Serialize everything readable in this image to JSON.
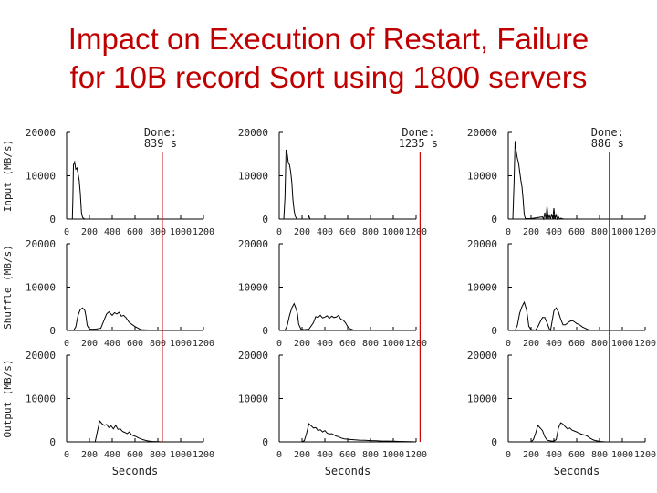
{
  "slide": {
    "title_line1": "Impact on Execution of Restart, Failure",
    "title_line2": "for 10B record Sort using 1800 servers"
  },
  "chart_data": {
    "type": "line",
    "rows": [
      "Input (MB/s)",
      "Shuffle (MB/s)",
      "Output (MB/s)"
    ],
    "xlabel": "Seconds",
    "xlim": [
      0,
      1200
    ],
    "xticks": [
      0,
      200,
      400,
      600,
      800,
      1000,
      1200
    ],
    "ylim": [
      0,
      20000
    ],
    "yticks": [
      0,
      10000,
      20000
    ],
    "colors": {
      "line": "#000000",
      "done_marker": "#cc0000"
    },
    "columns": [
      {
        "done_label": "Done:",
        "done_time": "839 s",
        "done_x": 839,
        "panels": [
          {
            "x": [
              0,
              50,
              55,
              60,
              70,
              80,
              90,
              100,
              110,
              120,
              130,
              140,
              150,
              160,
              180,
              200,
              1200
            ],
            "y": [
              0,
              0,
              5000,
              12500,
              13200,
              11500,
              11800,
              10500,
              9000,
              6000,
              1500,
              400,
              100,
              0,
              0,
              0,
              0
            ]
          },
          {
            "x": [
              0,
              60,
              80,
              100,
              120,
              140,
              160,
              170,
              180,
              200,
              250,
              300,
              330,
              350,
              370,
              400,
              420,
              440,
              460,
              480,
              500,
              520,
              550,
              600,
              650,
              800,
              1200
            ],
            "y": [
              0,
              0,
              800,
              3500,
              4800,
              5200,
              4600,
              3200,
              1200,
              300,
              300,
              500,
              2500,
              3800,
              4300,
              3500,
              4100,
              3800,
              4200,
              3300,
              3500,
              3000,
              1800,
              900,
              200,
              0,
              0
            ]
          },
          {
            "x": [
              0,
              250,
              270,
              290,
              310,
              330,
              350,
              370,
              390,
              410,
              430,
              450,
              470,
              490,
              510,
              530,
              550,
              570,
              590,
              610,
              630,
              650,
              670,
              700,
              720,
              750,
              800,
              830,
              840,
              1200
            ],
            "y": [
              0,
              0,
              2500,
              4800,
              4200,
              3800,
              4000,
              3300,
              3700,
              3000,
              3800,
              2900,
              3000,
              2400,
              2200,
              1900,
              2300,
              1600,
              1400,
              1200,
              900,
              700,
              500,
              300,
              200,
              100,
              50,
              0,
              0,
              0
            ]
          }
        ]
      },
      {
        "done_label": "Done:",
        "done_time": "1235 s",
        "done_x": 1235,
        "panels": [
          {
            "x": [
              0,
              40,
              50,
              60,
              70,
              80,
              90,
              100,
              110,
              120,
              130,
              140,
              150,
              160,
              200,
              250,
              260,
              270,
              1200
            ],
            "y": [
              0,
              0,
              5000,
              16000,
              15000,
              13000,
              12500,
              11000,
              8500,
              4500,
              2000,
              700,
              200,
              0,
              0,
              0,
              700,
              0,
              0
            ]
          },
          {
            "x": [
              0,
              50,
              70,
              90,
              110,
              130,
              150,
              160,
              170,
              190,
              220,
              260,
              300,
              320,
              340,
              360,
              380,
              400,
              420,
              440,
              460,
              480,
              500,
              520,
              540,
              560,
              580,
              600,
              620,
              650,
              700,
              1200
            ],
            "y": [
              0,
              0,
              1200,
              3500,
              5200,
              6200,
              4800,
              3800,
              1500,
              300,
              200,
              300,
              1800,
              3200,
              3000,
              3500,
              2900,
              3100,
              3400,
              2800,
              3300,
              3000,
              3100,
              3500,
              2600,
              2400,
              1800,
              900,
              400,
              100,
              0,
              0
            ]
          },
          {
            "x": [
              0,
              200,
              220,
              240,
              260,
              280,
              300,
              320,
              340,
              360,
              380,
              400,
              420,
              440,
              460,
              480,
              500,
              520,
              540,
              570,
              600,
              650,
              700,
              750,
              800,
              850,
              900,
              950,
              1000,
              1050,
              1100,
              1150,
              1200
            ],
            "y": [
              0,
              0,
              300,
              2000,
              4200,
              3700,
              3200,
              3300,
              2600,
              2800,
              2300,
              2600,
              2000,
              1800,
              1900,
              1600,
              1300,
              1200,
              900,
              700,
              600,
              500,
              400,
              350,
              300,
              250,
              200,
              200,
              150,
              100,
              80,
              50,
              0
            ]
          }
        ]
      },
      {
        "done_label": "Done:",
        "done_time": "886 s",
        "done_x": 886,
        "panels": [
          {
            "x": [
              0,
              40,
              50,
              60,
              70,
              80,
              90,
              100,
              110,
              120,
              130,
              140,
              150,
              200,
              300,
              310,
              320,
              330,
              340,
              350,
              360,
              370,
              380,
              390,
              400,
              410,
              420,
              430,
              440,
              450,
              460,
              470,
              480,
              490,
              500,
              550,
              1200
            ],
            "y": [
              0,
              0,
              8000,
              18000,
              15500,
              14000,
              13000,
              11000,
              9000,
              7500,
              4500,
              1000,
              100,
              100,
              500,
              0,
              1500,
              0,
              3000,
              0,
              900,
              0,
              1200,
              0,
              2500,
              0,
              1000,
              0,
              500,
              0,
              200,
              100,
              50,
              0,
              0,
              0,
              0
            ]
          },
          {
            "x": [
              0,
              60,
              80,
              100,
              120,
              140,
              160,
              170,
              180,
              200,
              240,
              260,
              280,
              300,
              320,
              340,
              360,
              370,
              380,
              400,
              420,
              440,
              460,
              480,
              500,
              520,
              540,
              560,
              580,
              600,
              620,
              650,
              700,
              750,
              1200
            ],
            "y": [
              0,
              0,
              1200,
              4000,
              5500,
              6500,
              4800,
              3000,
              1000,
              200,
              100,
              900,
              2000,
              3000,
              3000,
              1800,
              400,
              0,
              1400,
              4500,
              5200,
              4300,
              2600,
              1300,
              1300,
              1700,
              2100,
              2300,
              2000,
              1600,
              1400,
              800,
              200,
              0,
              0
            ]
          },
          {
            "x": [
              0,
              200,
              220,
              240,
              260,
              280,
              300,
              320,
              340,
              360,
              380,
              400,
              420,
              440,
              460,
              480,
              500,
              520,
              540,
              560,
              580,
              600,
              620,
              650,
              680,
              700,
              720,
              750,
              800,
              850,
              1200
            ],
            "y": [
              0,
              0,
              500,
              2000,
              3800,
              3200,
              2600,
              1200,
              400,
              300,
              200,
              200,
              500,
              3200,
              4400,
              4100,
              3500,
              3000,
              3200,
              2700,
              2500,
              2300,
              2000,
              1700,
              1500,
              1200,
              800,
              400,
              100,
              0,
              0
            ]
          }
        ]
      }
    ]
  }
}
